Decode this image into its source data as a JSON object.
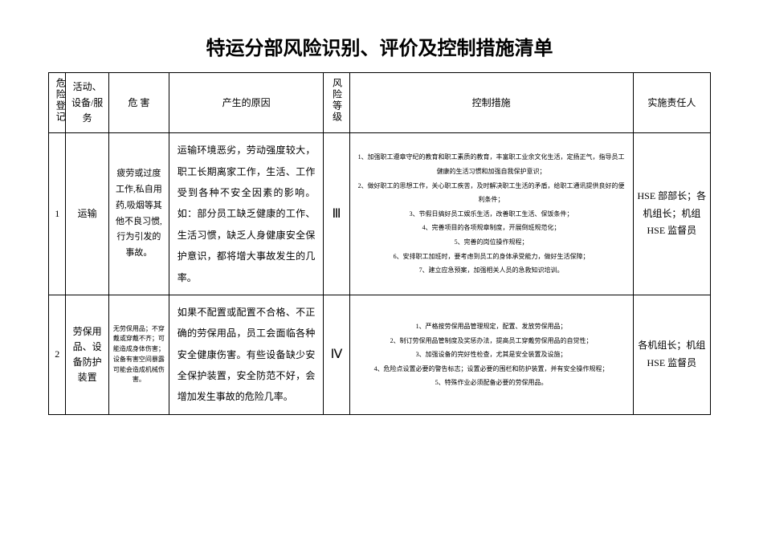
{
  "title": "特运分部风险识别、评价及控制措施清单",
  "headers": {
    "id": "危险登记",
    "activity": "活动、设备/服务",
    "hazard": "危 害",
    "cause": "产生的原因",
    "level": "风险等级",
    "control": "控制措施",
    "responsible": "实施责任人"
  },
  "rows": [
    {
      "id": "1",
      "activity": "运输",
      "hazard": "疲劳或过度工作,私自用药,吸烟等其他不良习惯,行为引发的事故。",
      "cause": "运输环境恶劣，劳动强度较大，职工长期离家工作，生活、工作受到各种不安全因素的影响。如：部分员工缺乏健康的工作、生活习惯，缺乏人身健康安全保护意识，都将增大事故发生的几率。",
      "level": "Ⅲ",
      "controls": [
        "1、加强职工遵章守纪的教育和职工素质的教育，丰富职工业余文化生活，定扬正气，指导员工健康的生活习惯和加强自我保护意识；",
        "2、做好职工的思想工作，关心职工疾苦，及时解决职工生活的矛盾，给职工通讯提供良好的便利条件；",
        "3、节假日搞好员工娱乐生活，改善职工生活、保饭条件；",
        "4、完善项目的各项规章制度，开展倒班规范化；",
        "5、完善的岗位操作规程；",
        "6、安排职工加班时，要考虑到员工的身体承受能力，做好生活保障；",
        "7、建立应急预案，加强相关人员的急救知识培训。"
      ],
      "responsible": "HSE 部部长；各机组长；机组 HSE 监督员"
    },
    {
      "id": "2",
      "activity": "劳保用品、设备防护装置",
      "hazard": "无劳保用品；不穿戴或穿戴不齐；可能造成身体伤害；设备有害空间暴露可能会造成机械伤害。",
      "cause": "如果不配置或配置不合格、不正确的劳保用品，员工会面临各种安全健康伤害。有些设备缺少安全保护装置，安全防范不好，会增加发生事故的危险几率。",
      "level": "Ⅳ",
      "controls": [
        "1、严格按劳保用品管理规定，配置、发放劳保用品；",
        "2、制订劳保用品管制度及奖惩办法，提高员工穿戴劳保用品的自觉性；",
        "3、加强设备的完好性检查，尤其是安全装置及设施；",
        "4、危险点设置必要的警告标志；设置必要的围栏和防护装置，并有安全操作规程；",
        "5、特殊作业必须配备必要的劳保用品。"
      ],
      "responsible": "各机组长；机组 HSE 监督员"
    }
  ]
}
